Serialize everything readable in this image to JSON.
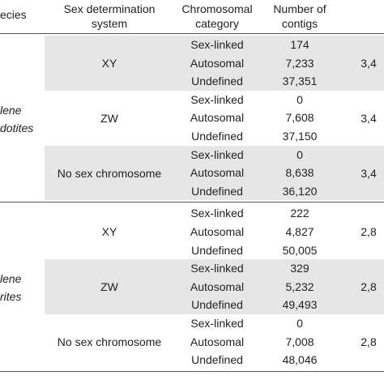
{
  "header": {
    "species": "ecies",
    "system": [
      "Sex determination",
      "system"
    ],
    "category": [
      "Chromosomal",
      "category"
    ],
    "contigs": [
      "Number of",
      "contigs"
    ]
  },
  "groups": [
    {
      "species": [
        "lene",
        "dotites"
      ],
      "systems": [
        {
          "system": "XY",
          "extra": "3,4",
          "rows": [
            {
              "category": "Sex-linked",
              "contigs": "174"
            },
            {
              "category": "Autosomal",
              "contigs": "7,233"
            },
            {
              "category": "Undefined",
              "contigs": "37,351"
            }
          ]
        },
        {
          "system": "ZW",
          "extra": "3,4",
          "rows": [
            {
              "category": "Sex-linked",
              "contigs": "0"
            },
            {
              "category": "Autosomal",
              "contigs": "7,608"
            },
            {
              "category": "Undefined",
              "contigs": "37,150"
            }
          ]
        },
        {
          "system": "No sex chromosome",
          "extra": "3,4",
          "rows": [
            {
              "category": "Sex-linked",
              "contigs": "0"
            },
            {
              "category": "Autosomal",
              "contigs": "8,638"
            },
            {
              "category": "Undefined",
              "contigs": "36,120"
            }
          ]
        }
      ]
    },
    {
      "species": [
        "lene",
        "rites"
      ],
      "systems": [
        {
          "system": "XY",
          "extra": "2,8",
          "rows": [
            {
              "category": "Sex-linked",
              "contigs": "222"
            },
            {
              "category": "Autosomal",
              "contigs": "4,827"
            },
            {
              "category": "Undefined",
              "contigs": "50,005"
            }
          ]
        },
        {
          "system": "ZW",
          "extra": "2,8",
          "rows": [
            {
              "category": "Sex-linked",
              "contigs": "329"
            },
            {
              "category": "Autosomal",
              "contigs": "5,232"
            },
            {
              "category": "Undefined",
              "contigs": "49,493"
            }
          ]
        },
        {
          "system": "No sex chromosome",
          "extra": "2,8",
          "rows": [
            {
              "category": "Sex-linked",
              "contigs": "0"
            },
            {
              "category": "Autosomal",
              "contigs": "7,008"
            },
            {
              "category": "Undefined",
              "contigs": "48,046"
            }
          ]
        }
      ]
    }
  ]
}
